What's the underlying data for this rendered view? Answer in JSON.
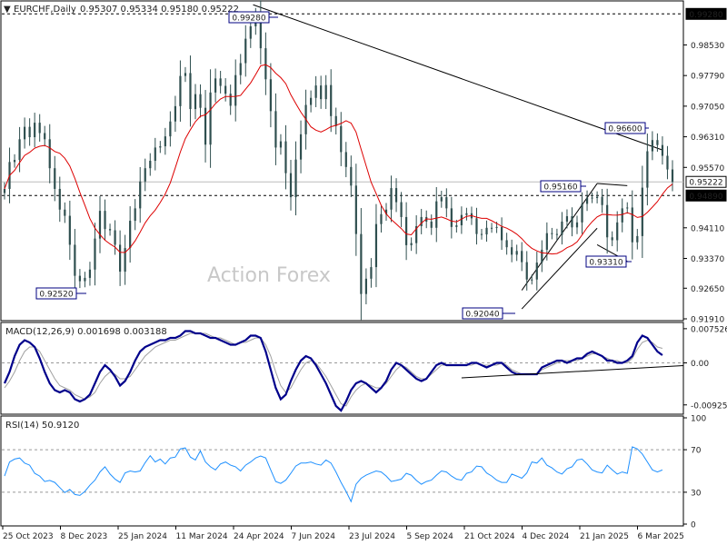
{
  "header": {
    "symbol": "EURCHF,Daily",
    "ohlc": "0.95307 0.95334 0.95180 0.95222"
  },
  "watermark": "Action Forex",
  "colors": {
    "candle": "#2f4f4f",
    "ma": "#dd0000",
    "trendline": "#000000",
    "macd": "#00008b",
    "signal": "#a0a0a0",
    "rsi": "#1e90ff",
    "grid_dash": "#999999"
  },
  "chart_data": [
    {
      "type": "candlestick",
      "panel": "price",
      "ylim": [
        0.9191,
        0.9955
      ],
      "ytick_labels": [
        "0.98530",
        "0.97790",
        "0.97050",
        "0.96310",
        "0.95570",
        "0.94110",
        "0.93370",
        "0.92650",
        "0.91910"
      ],
      "ytick_values": [
        0.9853,
        0.9779,
        0.9705,
        0.9631,
        0.9557,
        0.9411,
        0.9337,
        0.9265,
        0.9191
      ],
      "xtick_labels": [
        "25 Oct 2023",
        "8 Dec 2023",
        "25 Jan 2024",
        "11 Mar 2024",
        "24 Apr 2024",
        "7 Jun 2024",
        "23 Jul 2024",
        "5 Sep 2024",
        "21 Oct 2024",
        "4 Dec 2024",
        "21 Jan 2025",
        "6 Mar 2025"
      ],
      "closes": [
        0.9505,
        0.957,
        0.9575,
        0.9625,
        0.9655,
        0.963,
        0.9665,
        0.964,
        0.9625,
        0.9555,
        0.9505,
        0.9455,
        0.944,
        0.937,
        0.9295,
        0.9282,
        0.929,
        0.931,
        0.9385,
        0.9452,
        0.9408,
        0.9405,
        0.937,
        0.9305,
        0.9362,
        0.9428,
        0.9458,
        0.9523,
        0.9555,
        0.9573,
        0.9605,
        0.9608,
        0.9632,
        0.9668,
        0.9705,
        0.9778,
        0.9785,
        0.9698,
        0.9734,
        0.9701,
        0.9612,
        0.9738,
        0.9772,
        0.9754,
        0.9735,
        0.9706,
        0.978,
        0.9809,
        0.9868,
        0.9898,
        0.9922,
        0.9845,
        0.977,
        0.9693,
        0.9605,
        0.962,
        0.9543,
        0.9485,
        0.9576,
        0.9637,
        0.9708,
        0.9725,
        0.9755,
        0.9722,
        0.9756,
        0.9681,
        0.9657,
        0.9594,
        0.9558,
        0.9513,
        0.9396,
        0.9251,
        0.9288,
        0.9316,
        0.942,
        0.9444,
        0.9455,
        0.9507,
        0.9473,
        0.9437,
        0.9369,
        0.9374,
        0.9415,
        0.9437,
        0.9426,
        0.9411,
        0.9475,
        0.9485,
        0.9458,
        0.9413,
        0.9417,
        0.9442,
        0.9446,
        0.9434,
        0.9396,
        0.9395,
        0.9411,
        0.9411,
        0.9413,
        0.9381,
        0.9364,
        0.9346,
        0.9355,
        0.9328,
        0.9286,
        0.9286,
        0.9327,
        0.9358,
        0.9398,
        0.9396,
        0.9394,
        0.9426,
        0.9439,
        0.9412,
        0.9424,
        0.9469,
        0.9484,
        0.9483,
        0.9486,
        0.9466,
        0.9388,
        0.9381,
        0.9424,
        0.9458,
        0.946,
        0.9376,
        0.9391,
        0.9508,
        0.9596,
        0.9623,
        0.9611,
        0.9585,
        0.9552,
        0.9522
      ],
      "ma_line": "red moving average",
      "horizontal_lines": [
        0.9928,
        0.9522,
        0.9489
      ],
      "price_tags": [
        {
          "label": "0.99280",
          "bg": "#000000",
          "fg": "#ffffff"
        },
        {
          "label": "0.95222",
          "bg": "#ffffff",
          "fg": "#000000"
        },
        {
          "label": "0.94890",
          "bg": "#000000",
          "fg": "#ffffff"
        }
      ],
      "annotations": [
        "0.99280",
        "0.96600",
        "0.95160",
        "0.93310",
        "0.92520",
        "0.92040"
      ]
    },
    {
      "type": "line",
      "panel": "macd",
      "title": "MACD(12,26,9) 0.001698 0.003188",
      "ylim": [
        -0.0109,
        0.0085
      ],
      "ytick_labels": [
        "0.007526",
        "0.00",
        "-0.009252"
      ],
      "ytick_values": [
        0.007526,
        0.0,
        -0.009252
      ],
      "series": [
        {
          "name": "MACD",
          "values": [
            -0.0045,
            -0.002,
            0.0015,
            0.004,
            0.005,
            0.0045,
            0.0035,
            0.001,
            -0.002,
            -0.0045,
            -0.006,
            -0.0065,
            -0.006,
            -0.0065,
            -0.008,
            -0.0085,
            -0.008,
            -0.007,
            -0.0045,
            -0.002,
            -0.0005,
            -0.0015,
            -0.003,
            -0.005,
            -0.004,
            -0.002,
            0.0005,
            0.0025,
            0.0035,
            0.004,
            0.0045,
            0.005,
            0.005,
            0.0055,
            0.0055,
            0.006,
            0.007,
            0.007,
            0.0065,
            0.0065,
            0.006,
            0.0055,
            0.0055,
            0.005,
            0.0045,
            0.004,
            0.004,
            0.0045,
            0.005,
            0.006,
            0.006,
            0.0055,
            0.0025,
            -0.0015,
            -0.0055,
            -0.008,
            -0.007,
            -0.004,
            -0.0015,
            0.0005,
            0.0015,
            0.001,
            -0.0005,
            -0.0025,
            -0.0045,
            -0.007,
            -0.0095,
            -0.0105,
            -0.0085,
            -0.006,
            -0.0045,
            -0.004,
            -0.0045,
            -0.0055,
            -0.0065,
            -0.0055,
            -0.004,
            -0.0015,
            0.0,
            -0.0005,
            -0.0015,
            -0.0025,
            -0.0035,
            -0.004,
            -0.0035,
            -0.002,
            -0.0005,
            0.0,
            -0.0005,
            -0.0005,
            -0.0005,
            -0.0005,
            -0.0005,
            0.0,
            0.0,
            -0.0005,
            -0.001,
            -0.0005,
            0.0,
            0.0,
            -0.001,
            -0.002,
            -0.0025,
            -0.0025,
            -0.0025,
            -0.0025,
            -0.0025,
            -0.001,
            -0.0005,
            0.0,
            0.0005,
            0.0005,
            0.0,
            0.0005,
            0.001,
            0.001,
            0.002,
            0.0025,
            0.002,
            0.0015,
            0.0005,
            0.0005,
            0.0,
            0.0,
            0.0005,
            0.0015,
            0.0045,
            0.006,
            0.0055,
            0.004,
            0.0025,
            0.0017
          ]
        },
        {
          "name": "Signal",
          "values": [
            -0.0055,
            -0.004,
            -0.002,
            0.0005,
            0.0025,
            0.0035,
            0.0035,
            0.0025,
            0.0005,
            -0.0015,
            -0.0035,
            -0.005,
            -0.0055,
            -0.006,
            -0.007,
            -0.0075,
            -0.008,
            -0.0075,
            -0.0065,
            -0.0045,
            -0.003,
            -0.002,
            -0.0025,
            -0.0035,
            -0.0035,
            -0.003,
            -0.0015,
            0.0,
            0.0015,
            0.0025,
            0.0035,
            0.004,
            0.0045,
            0.005,
            0.005,
            0.0055,
            0.006,
            0.0065,
            0.0065,
            0.0065,
            0.0065,
            0.006,
            0.0055,
            0.0055,
            0.005,
            0.0045,
            0.004,
            0.0045,
            0.0045,
            0.005,
            0.0055,
            0.0055,
            0.004,
            0.0015,
            -0.002,
            -0.005,
            -0.0065,
            -0.0055,
            -0.0035,
            -0.0015,
            0.0,
            0.0005,
            0.0,
            -0.0015,
            -0.003,
            -0.005,
            -0.007,
            -0.009,
            -0.0095,
            -0.0075,
            -0.006,
            -0.005,
            -0.0045,
            -0.005,
            -0.0055,
            -0.0055,
            -0.0045,
            -0.003,
            -0.0015,
            -0.0005,
            -0.001,
            -0.002,
            -0.003,
            -0.0035,
            -0.0035,
            -0.0025,
            -0.0015,
            -0.0005,
            -0.0005,
            -0.0005,
            -0.0005,
            -0.0005,
            -0.0005,
            -0.0005,
            0.0,
            -0.0005,
            -0.0005,
            -0.0005,
            -0.0005,
            0.0,
            -0.0005,
            -0.0015,
            -0.002,
            -0.0025,
            -0.0025,
            -0.0025,
            -0.0025,
            -0.0015,
            -0.001,
            -0.0005,
            0.0,
            0.0005,
            0.0005,
            0.0005,
            0.0005,
            0.001,
            0.0015,
            0.002,
            0.002,
            0.0015,
            0.001,
            0.0005,
            0.0005,
            0.0,
            0.0,
            0.001,
            0.003,
            0.0045,
            0.005,
            0.0045,
            0.0035,
            0.0032
          ]
        }
      ],
      "trendline": true
    },
    {
      "type": "line",
      "panel": "rsi",
      "title": "RSI(14) 50.9120",
      "ylim": [
        0,
        100
      ],
      "ytick_labels": [
        "100",
        "70",
        "30",
        "0"
      ],
      "ytick_values": [
        100,
        70,
        30,
        0
      ],
      "guides": [
        70,
        30
      ],
      "series": [
        {
          "name": "RSI",
          "values": [
            45.2,
            58.5,
            61.2,
            62.2,
            57.4,
            55.5,
            47.8,
            45.2,
            40.1,
            41.1,
            39.2,
            34.4,
            29.7,
            32.6,
            27.9,
            27.0,
            30.8,
            36.6,
            41.4,
            49.1,
            53.9,
            47.1,
            42.3,
            39.2,
            48.1,
            50.0,
            49.1,
            50.0,
            57.8,
            64.4,
            58.5,
            61.2,
            56.6,
            62.2,
            63.1,
            70.8,
            71.7,
            63.1,
            60.3,
            68.9,
            58.5,
            53.9,
            51.0,
            56.6,
            58.5,
            55.5,
            53.9,
            50.0,
            55.5,
            58.5,
            62.2,
            64.1,
            62.2,
            51.0,
            40.1,
            38.3,
            41.4,
            47.8,
            54.6,
            57.4,
            57.4,
            58.5,
            56.6,
            55.5,
            60.3,
            57.4,
            49.1,
            39.2,
            30.8,
            21.2,
            37.5,
            43.2,
            46.1,
            48.1,
            50.0,
            49.1,
            45.2,
            40.1,
            41.1,
            42.3,
            47.8,
            46.1,
            41.1,
            37.5,
            40.1,
            41.4,
            46.1,
            50.0,
            49.1,
            45.2,
            42.3,
            41.4,
            47.8,
            49.1,
            54.6,
            53.9,
            48.1,
            45.2,
            41.4,
            39.2,
            39.2,
            47.1,
            45.2,
            43.2,
            48.1,
            58.5,
            57.4,
            62.2,
            55.5,
            52.9,
            49.1,
            47.1,
            52.1,
            53.9,
            60.3,
            61.2,
            56.6,
            51.0,
            49.1,
            48.1,
            55.5,
            51.0,
            47.1,
            49.1,
            47.8,
            72.7,
            70.8,
            66.0,
            58.5,
            51.0,
            49.1,
            50.9
          ]
        }
      ]
    }
  ]
}
